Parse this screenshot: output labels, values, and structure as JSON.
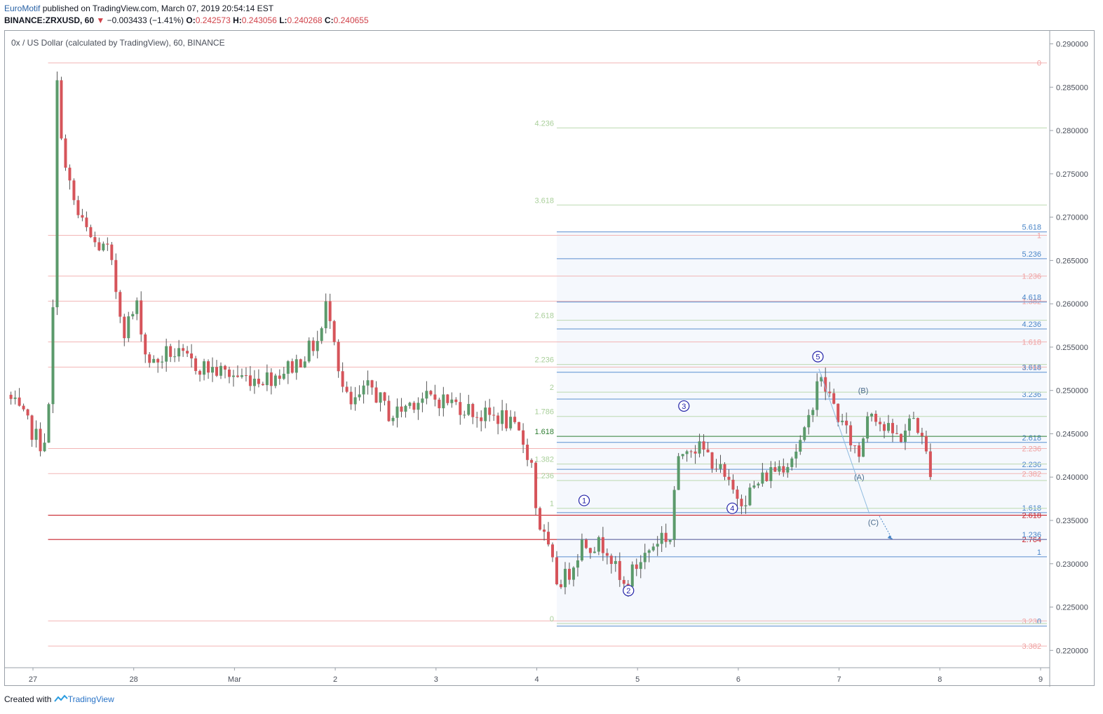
{
  "header": {
    "author": "EuroMotif",
    "published": "published on TradingView.com, March 07, 2019 20:54:14 EST",
    "symbol": "BINANCE:ZRXUSD, 60",
    "change_arrow": "▼",
    "change": "−0.003433 (−1.41%)",
    "o_label": "O:",
    "o_value": "0.242573",
    "h_label": "H:",
    "h_value": "0.243056",
    "l_label": "L:",
    "l_value": "0.240268",
    "c_label": "C:",
    "c_value": "0.240655"
  },
  "chart_title": "0x / US Dollar (calculated by TradingView), 60, BINANCE",
  "footer": {
    "prefix": "Created with",
    "brand": "TradingView"
  },
  "colors": {
    "up": "#5b9a6b",
    "down": "#d6545a",
    "fib_red": "#f2b5b5",
    "fib_blue": "#5b8fd0",
    "fib_green": "#bcd9b0",
    "wave_label": "#2323a8"
  },
  "chart_data": {
    "type": "candlestick",
    "y_axis": {
      "min": 0.218,
      "max": 0.2915,
      "ticks": [
        "0.290000",
        "0.285000",
        "0.280000",
        "0.275000",
        "0.270000",
        "0.265000",
        "0.260000",
        "0.255000",
        "0.250000",
        "0.245000",
        "0.240000",
        "0.235000",
        "0.230000",
        "0.225000",
        "0.220000"
      ]
    },
    "x_axis": {
      "labels": [
        {
          "t": 0,
          "label": "27"
        },
        {
          "t": 1,
          "label": "28"
        },
        {
          "t": 2,
          "label": "Mar"
        },
        {
          "t": 3,
          "label": "2"
        },
        {
          "t": 4,
          "label": "3"
        },
        {
          "t": 5,
          "label": "4"
        },
        {
          "t": 6,
          "label": "5"
        },
        {
          "t": 7,
          "label": "6"
        },
        {
          "t": 8,
          "label": "7"
        },
        {
          "t": 9,
          "label": "8"
        },
        {
          "t": 10,
          "label": "9"
        }
      ]
    },
    "price_path": [
      [
        -0.26,
        0.2495
      ],
      [
        0.1,
        0.2435
      ],
      [
        0.18,
        0.2495
      ],
      [
        0.2,
        0.26
      ],
      [
        0.22,
        0.2875
      ],
      [
        0.32,
        0.2755
      ],
      [
        0.45,
        0.27
      ],
      [
        0.6,
        0.267
      ],
      [
        0.75,
        0.266
      ],
      [
        0.9,
        0.257
      ],
      [
        1.05,
        0.26
      ],
      [
        1.1,
        0.2545
      ],
      [
        1.2,
        0.253
      ],
      [
        1.35,
        0.2545
      ],
      [
        1.6,
        0.253
      ],
      [
        1.9,
        0.252
      ],
      [
        2.1,
        0.2515
      ],
      [
        2.35,
        0.2515
      ],
      [
        2.6,
        0.253
      ],
      [
        2.85,
        0.256
      ],
      [
        2.92,
        0.2605
      ],
      [
        3.0,
        0.256
      ],
      [
        3.05,
        0.251
      ],
      [
        3.15,
        0.248
      ],
      [
        3.35,
        0.2505
      ],
      [
        3.55,
        0.247
      ],
      [
        3.8,
        0.249
      ],
      [
        4.05,
        0.249
      ],
      [
        4.3,
        0.248
      ],
      [
        4.45,
        0.247
      ],
      [
        4.65,
        0.247
      ],
      [
        4.85,
        0.2445
      ],
      [
        4.95,
        0.2415
      ],
      [
        5.0,
        0.2355
      ],
      [
        5.1,
        0.232
      ],
      [
        5.2,
        0.228
      ],
      [
        5.3,
        0.2285
      ],
      [
        5.45,
        0.2325
      ],
      [
        5.7,
        0.232
      ],
      [
        5.85,
        0.227
      ],
      [
        6.0,
        0.23
      ],
      [
        6.25,
        0.2335
      ],
      [
        6.32,
        0.2325
      ],
      [
        6.38,
        0.2405
      ],
      [
        6.48,
        0.244
      ],
      [
        6.65,
        0.243
      ],
      [
        6.78,
        0.2415
      ],
      [
        6.92,
        0.2385
      ],
      [
        7.05,
        0.2375
      ],
      [
        7.3,
        0.2405
      ],
      [
        7.5,
        0.242
      ],
      [
        7.65,
        0.2445
      ],
      [
        7.72,
        0.2475
      ],
      [
        7.78,
        0.2515
      ],
      [
        7.88,
        0.25
      ],
      [
        8.05,
        0.2455
      ],
      [
        8.2,
        0.2425
      ],
      [
        8.3,
        0.2485
      ],
      [
        8.45,
        0.2455
      ],
      [
        8.6,
        0.2445
      ],
      [
        8.75,
        0.247
      ],
      [
        8.88,
        0.242
      ],
      [
        8.92,
        0.2405
      ]
    ],
    "fib_red": [
      {
        "label": "0",
        "price": 0.2878,
        "x_start": 0.15
      },
      {
        "label": "1",
        "price": 0.2679,
        "x_start": 0.15
      },
      {
        "label": "1.236",
        "price": 0.2632,
        "x_start": 0.15
      },
      {
        "label": "1.382",
        "price": 0.2603,
        "x_start": 0.15
      },
      {
        "label": "1.618",
        "price": 0.2556,
        "x_start": 0.15
      },
      {
        "label": "1.764",
        "price": 0.2527,
        "x_start": 0.15
      },
      {
        "label": "2.236",
        "price": 0.2433,
        "x_start": 0.15
      },
      {
        "label": "2.382",
        "price": 0.2404,
        "x_start": 0.15
      },
      {
        "label": "2.618",
        "price": 0.2356,
        "x_start": 0.15,
        "strong": true
      },
      {
        "label": "2.764",
        "price": 0.2328,
        "x_start": 0.15,
        "strong": true
      },
      {
        "label": "3.236",
        "price": 0.2234,
        "x_start": 0.15
      },
      {
        "label": "3.382",
        "price": 0.2205,
        "x_start": 0.15
      }
    ],
    "fib_blue": [
      {
        "label": "0",
        "price": 0.2228
      },
      {
        "label": "1",
        "price": 0.2308
      },
      {
        "label": "1.236",
        "price": 0.2328
      },
      {
        "label": "1.618",
        "price": 0.2359
      },
      {
        "label": "2.236",
        "price": 0.2409
      },
      {
        "label": "2.618",
        "price": 0.244
      },
      {
        "label": "3.236",
        "price": 0.249
      },
      {
        "label": "3.618",
        "price": 0.2521
      },
      {
        "label": "4.236",
        "price": 0.2571
      },
      {
        "label": "4.618",
        "price": 0.2602
      },
      {
        "label": "5.236",
        "price": 0.2652
      },
      {
        "label": "5.618",
        "price": 0.2683
      }
    ],
    "fib_green": [
      {
        "label": "0",
        "price": 0.2231
      },
      {
        "label": "1",
        "price": 0.2364
      },
      {
        "label": "1.236",
        "price": 0.2396
      },
      {
        "label": "1.382",
        "price": 0.2415
      },
      {
        "label": "1.618",
        "price": 0.2447,
        "strong": true
      },
      {
        "label": "1.786",
        "price": 0.247
      },
      {
        "label": "2",
        "price": 0.2498
      },
      {
        "label": "2.236",
        "price": 0.253
      },
      {
        "label": "2.618",
        "price": 0.2581
      },
      {
        "label": "3.618",
        "price": 0.2714
      },
      {
        "label": "4.236",
        "price": 0.2803
      }
    ],
    "waves": [
      {
        "label": "1",
        "t": 5.47,
        "price": 0.2373,
        "circled": true
      },
      {
        "label": "2",
        "t": 5.91,
        "price": 0.2269,
        "circled": true
      },
      {
        "label": "3",
        "t": 6.46,
        "price": 0.2482,
        "circled": true
      },
      {
        "label": "4",
        "t": 6.94,
        "price": 0.2364,
        "circled": true
      },
      {
        "label": "5",
        "t": 7.79,
        "price": 0.2539,
        "circled": true
      },
      {
        "label": "(A)",
        "t": 8.2,
        "price": 0.24,
        "circled": false
      },
      {
        "label": "(B)",
        "t": 8.24,
        "price": 0.25,
        "circled": false
      },
      {
        "label": "(C)",
        "t": 8.34,
        "price": 0.2348,
        "circled": false
      }
    ]
  }
}
